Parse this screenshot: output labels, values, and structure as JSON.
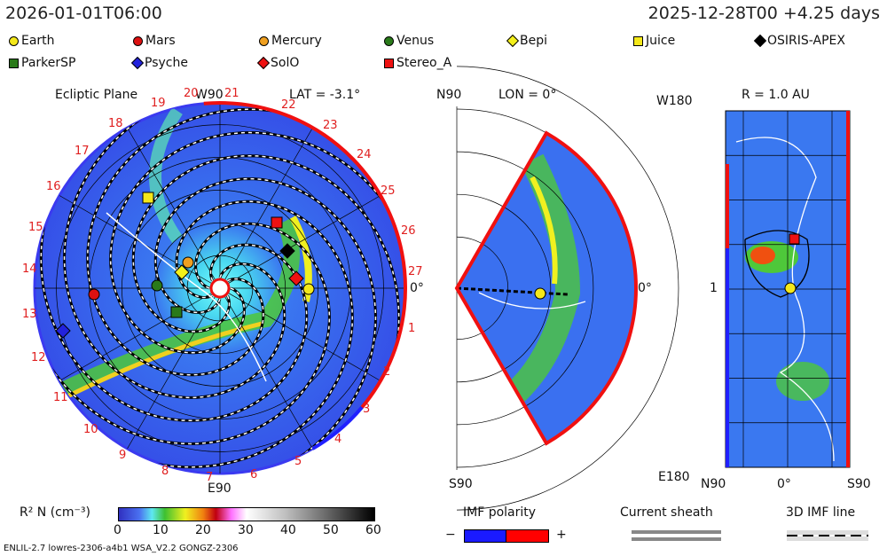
{
  "header": {
    "time": "2026-01-01T06:00",
    "run": "2025-12-28T00 +4.25 days"
  },
  "legend": [
    {
      "label": "Earth",
      "shape": "circle",
      "color": "#f4e81a"
    },
    {
      "label": "Mars",
      "shape": "circle",
      "color": "#dd1111"
    },
    {
      "label": "Mercury",
      "shape": "circle",
      "color": "#f0a020"
    },
    {
      "label": "Venus",
      "shape": "circle",
      "color": "#2a7a1a"
    },
    {
      "label": "Bepi",
      "shape": "diamond",
      "color": "#f4f01a"
    },
    {
      "label": "Juice",
      "shape": "square",
      "color": "#f4e81a"
    },
    {
      "label": "OSIRIS-APEX",
      "shape": "diamond",
      "color": "#000000"
    },
    {
      "label": "ParkerSP",
      "shape": "square",
      "color": "#2a7a1a"
    },
    {
      "label": "Psyche",
      "shape": "diamond",
      "color": "#2222dd"
    },
    {
      "label": "SolO",
      "shape": "diamond",
      "color": "#ee1111"
    },
    {
      "label": "Stereo_A",
      "shape": "square",
      "color": "#ee1111"
    }
  ],
  "ecliptic": {
    "title": "Ecliptic Plane",
    "lat": "LAT = -3.1°",
    "top_label": "W90",
    "bottom_label": "E90",
    "right_label": "0°",
    "hour_labels": [
      "20",
      "21",
      "22",
      "23",
      "24",
      "25",
      "26",
      "27",
      "1",
      "2",
      "3",
      "4",
      "5",
      "6",
      "7",
      "8",
      "9",
      "10",
      "11",
      "12",
      "13",
      "14",
      "15",
      "16",
      "17",
      "18",
      "19"
    ]
  },
  "meridional": {
    "top_label": "N90",
    "bottom_label": "S90",
    "lon": "LON = 0°",
    "right_label": "0°"
  },
  "radial": {
    "title": "R = 1.0 AU",
    "top_left": "W180",
    "bottom_left": "E180",
    "mid_left": "1",
    "x_labels": [
      "N90",
      "0°",
      "S90"
    ]
  },
  "colorbar": {
    "label": "R² N (cm⁻³)",
    "ticks": [
      "0",
      "10",
      "20",
      "30",
      "40",
      "50",
      "60"
    ],
    "range": [
      0,
      60
    ]
  },
  "imf": {
    "title": "IMF polarity",
    "minus": "−",
    "plus": "+",
    "neg_color": "#1a1aff",
    "pos_color": "#ff0000"
  },
  "sheath": {
    "title": "Current sheath"
  },
  "imf_line": {
    "title": "3D IMF line"
  },
  "footer": "ENLIL-2.7 lowres-2306-a4b1 WSA_V2.2 GONGZ-2306"
}
